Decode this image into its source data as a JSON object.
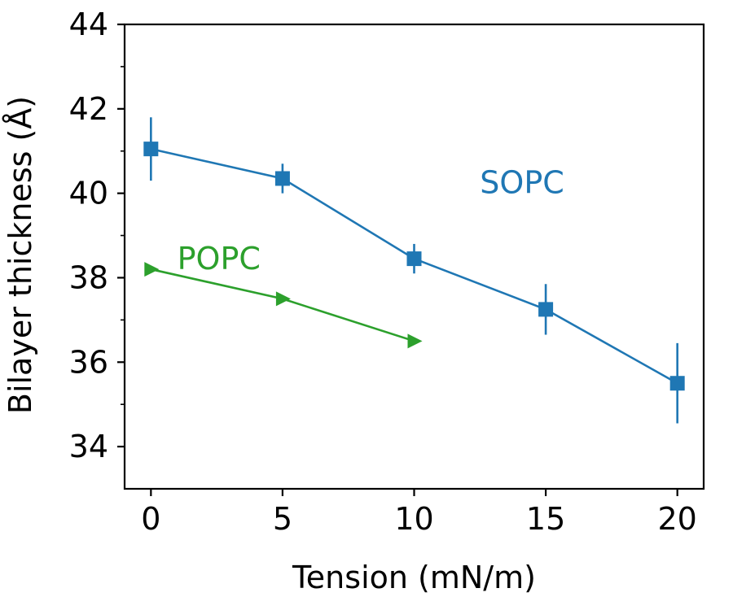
{
  "chart_data": {
    "type": "line",
    "xlabel": "Tension (mN/m)",
    "ylabel": "Bilayer thickness (Å)",
    "xlim": [
      -1,
      21
    ],
    "ylim": [
      33,
      44
    ],
    "xticks": [
      0,
      5,
      10,
      15,
      20
    ],
    "yticks": [
      34,
      36,
      38,
      40,
      42,
      44
    ],
    "yminor_ticks": [
      35,
      37,
      39,
      41,
      43
    ],
    "grid": false,
    "legend": "none",
    "series": [
      {
        "name": "SOPC",
        "color": "#1f77b4",
        "marker": "square",
        "x": [
          0,
          5,
          10,
          15,
          20
        ],
        "y": [
          41.05,
          40.35,
          38.45,
          37.25,
          35.5
        ],
        "yerr": [
          0.75,
          0.35,
          0.35,
          0.6,
          0.95
        ]
      },
      {
        "name": "POPC",
        "color": "#2ca02c",
        "marker": "triangle-right",
        "x": [
          0,
          5,
          10
        ],
        "y": [
          38.2,
          37.5,
          36.5
        ],
        "yerr": [
          0,
          0,
          0
        ]
      }
    ],
    "annotations": [
      {
        "text": "SOPC",
        "x": 12.5,
        "y": 40.0,
        "color": "#1f77b4"
      },
      {
        "text": "POPC",
        "x": 1.0,
        "y": 38.2,
        "color": "#2ca02c"
      }
    ]
  }
}
